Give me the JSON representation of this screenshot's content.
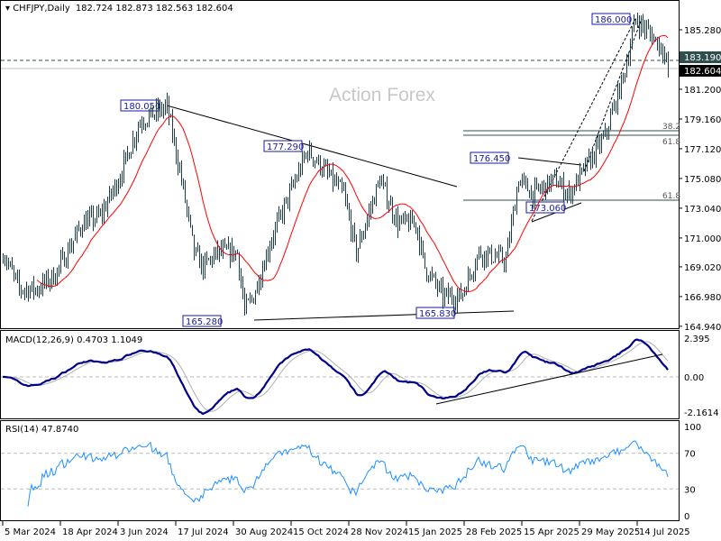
{
  "header": {
    "symbol": "CHFJPY,Daily",
    "ohlc": "182.724 182.873 182.563 182.604"
  },
  "watermark": "Action Forex",
  "chart_data": {
    "type": "ohlc",
    "title": "CHFJPY,Daily",
    "open": 182.724,
    "high": 182.873,
    "low": 182.563,
    "close": 182.604,
    "price_ticks": [
      "185.280",
      "181.200",
      "179.160",
      "177.120",
      "175.080",
      "173.040",
      "171.000",
      "169.020",
      "166.980",
      "164.940"
    ],
    "price_range": [
      164.94,
      186.6
    ],
    "date_ticks": [
      "5 Mar 2024",
      "18 Apr 2024",
      "3 Jun 2024",
      "17 Jul 2024",
      "30 Aug 2024",
      "15 Oct 2024",
      "28 Nov 2024",
      "15 Jan 2025",
      "28 Feb 2025",
      "15 Apr 2025",
      "29 May 2025",
      "14 Jul 2025"
    ],
    "close_anchors": [
      [
        0,
        170
      ],
      [
        9,
        167.5
      ],
      [
        19,
        167.5
      ],
      [
        29,
        168.5
      ],
      [
        44,
        172
      ],
      [
        54,
        172.5
      ],
      [
        64,
        175
      ],
      [
        76,
        179
      ],
      [
        91,
        180
      ],
      [
        99,
        175
      ],
      [
        106,
        170
      ],
      [
        111,
        169
      ],
      [
        119,
        170
      ],
      [
        130,
        170
      ],
      [
        134,
        166
      ],
      [
        139,
        167
      ],
      [
        149,
        171
      ],
      [
        159,
        174
      ],
      [
        169,
        177
      ],
      [
        176,
        176
      ],
      [
        189,
        174
      ],
      [
        196,
        170
      ],
      [
        209,
        175
      ],
      [
        219,
        172
      ],
      [
        229,
        172
      ],
      [
        234,
        169
      ],
      [
        244,
        167
      ],
      [
        254,
        167
      ],
      [
        264,
        170
      ],
      [
        279,
        169.5
      ],
      [
        286,
        175
      ],
      [
        294,
        174
      ],
      [
        306,
        175
      ],
      [
        314,
        174
      ],
      [
        324,
        176
      ],
      [
        334,
        178
      ],
      [
        344,
        182
      ],
      [
        351,
        186
      ],
      [
        359,
        185
      ],
      [
        366,
        184
      ],
      [
        369,
        182.6
      ]
    ],
    "levels": {
      "resistance_line": "183.190",
      "current_price": "182.604"
    },
    "annotations": [
      "180.050",
      "177.290",
      "165.280",
      "165.830",
      "176.450",
      "173.060",
      "186.000"
    ],
    "fib_labels": [
      "38.2",
      "61.8",
      "61.8"
    ],
    "moving_average_color": "#ff0000",
    "bar_color": "#1b3d4f",
    "macd": {
      "label": "MACD(12,26,9) 0.4703 1.1049",
      "ticks": [
        "2.395",
        "0.00",
        "-2.1614"
      ],
      "line_color": "#00008b",
      "signal_color": "#b0b0b0"
    },
    "rsi": {
      "label": "RSI(14) 47.8740",
      "ticks": [
        "100",
        "70",
        "30",
        "0"
      ],
      "line_color": "#1e90ff"
    }
  }
}
